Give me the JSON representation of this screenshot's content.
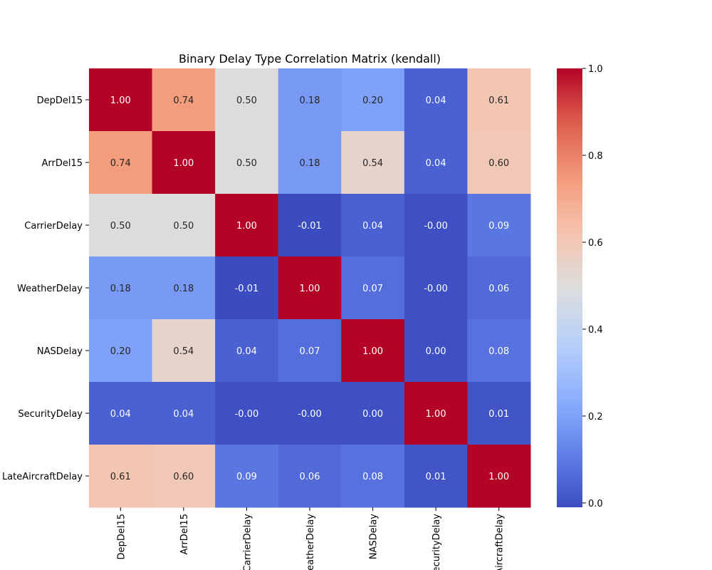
{
  "chart_data": {
    "type": "heatmap",
    "title": "Binary Delay Type Correlation Matrix (kendall)",
    "xlabel": "",
    "ylabel": "",
    "x_labels": [
      "DepDel15",
      "ArrDel15",
      "CarrierDelay",
      "WeatherDelay",
      "NASDelay",
      "SecurityDelay",
      "LateAircraftDelay"
    ],
    "y_labels": [
      "DepDel15",
      "ArrDel15",
      "CarrierDelay",
      "WeatherDelay",
      "NASDelay",
      "SecurityDelay",
      "LateAircraftDelay"
    ],
    "values": [
      [
        1.0,
        0.74,
        0.5,
        0.18,
        0.2,
        0.04,
        0.61
      ],
      [
        0.74,
        1.0,
        0.5,
        0.18,
        0.54,
        0.04,
        0.6
      ],
      [
        0.5,
        0.5,
        1.0,
        -0.01,
        0.04,
        0.0,
        0.09
      ],
      [
        0.18,
        0.18,
        -0.01,
        1.0,
        0.07,
        0.0,
        0.06
      ],
      [
        0.2,
        0.54,
        0.04,
        0.07,
        1.0,
        0.0,
        0.08
      ],
      [
        0.04,
        0.04,
        0.0,
        0.0,
        0.0,
        1.0,
        0.01
      ],
      [
        0.61,
        0.6,
        0.09,
        0.06,
        0.08,
        0.01,
        1.0
      ]
    ],
    "cell_labels": [
      [
        "1.00",
        "0.74",
        "0.50",
        "0.18",
        "0.20",
        "0.04",
        "0.61"
      ],
      [
        "0.74",
        "1.00",
        "0.50",
        "0.18",
        "0.54",
        "0.04",
        "0.60"
      ],
      [
        "0.50",
        "0.50",
        "1.00",
        "-0.01",
        "0.04",
        "-0.00",
        "0.09"
      ],
      [
        "0.18",
        "0.18",
        "-0.01",
        "1.00",
        "0.07",
        "-0.00",
        "0.06"
      ],
      [
        "0.20",
        "0.54",
        "0.04",
        "0.07",
        "1.00",
        "0.00",
        "0.08"
      ],
      [
        "0.04",
        "0.04",
        "-0.00",
        "-0.00",
        "0.00",
        "1.00",
        "0.01"
      ],
      [
        "0.61",
        "0.60",
        "0.09",
        "0.06",
        "0.08",
        "0.01",
        "1.00"
      ]
    ],
    "colormap": "coolwarm",
    "vmin": -0.01,
    "vmax": 1.0,
    "colorbar": {
      "ticks": [
        0.0,
        0.2,
        0.4,
        0.6,
        0.8,
        1.0
      ],
      "tick_labels": [
        "0.0",
        "0.2",
        "0.4",
        "0.6",
        "0.8",
        "1.0"
      ],
      "placement": "right"
    },
    "grid": false
  }
}
